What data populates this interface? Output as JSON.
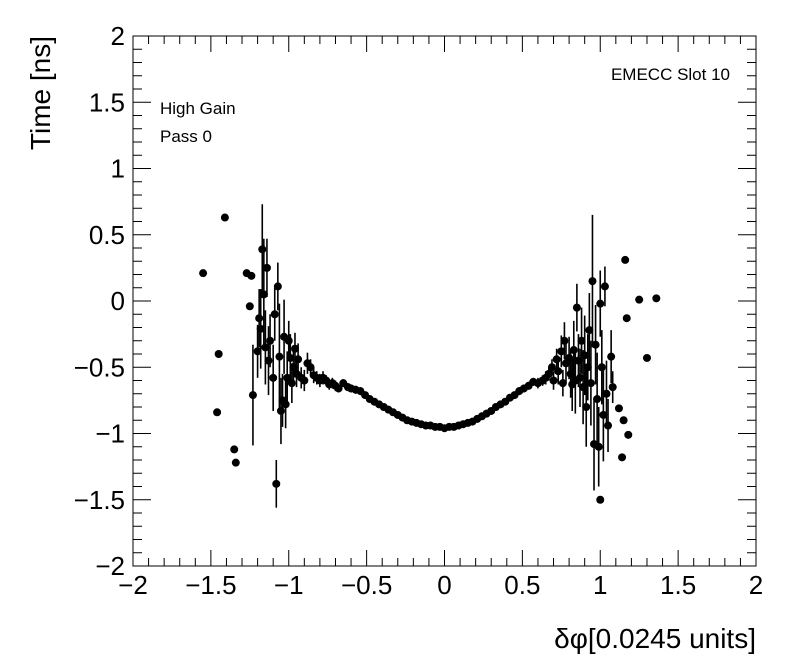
{
  "chart_data": {
    "type": "scatter",
    "title": "",
    "xlabel": "δφ[0.0245 units]",
    "ylabel": "Time [ns]",
    "xlim": [
      -2,
      2
    ],
    "ylim": [
      -2,
      2
    ],
    "x_ticks": [
      -2,
      -1.5,
      -1,
      -0.5,
      0,
      0.5,
      1,
      1.5,
      2
    ],
    "x_tick_labels": [
      "−2",
      "−1.5",
      "−1",
      "−0.5",
      "0",
      "0.5",
      "1",
      "1.5",
      "2"
    ],
    "y_ticks": [
      -2,
      -1.5,
      -1,
      -0.5,
      0,
      0.5,
      1,
      1.5,
      2
    ],
    "y_tick_labels": [
      "−2",
      "−1.5",
      "−1",
      "−0.5",
      "0",
      "0.5",
      "1",
      "1.5",
      "2"
    ],
    "grid": false,
    "legend": "none",
    "annotations": {
      "top_right": "EMECC Slot 10",
      "line1": "High Gain",
      "line2": "Pass 0"
    },
    "marker_color": "#000000",
    "series": [
      {
        "points": [
          [
            -1.55,
            0.21,
            0
          ],
          [
            -1.45,
            -0.4,
            0
          ],
          [
            -1.46,
            -0.84,
            0
          ],
          [
            -1.41,
            0.63,
            0
          ],
          [
            -1.35,
            -1.12,
            0
          ],
          [
            -1.34,
            -1.22,
            0
          ],
          [
            -1.27,
            0.21,
            0
          ],
          [
            -1.25,
            -0.04,
            0
          ],
          [
            -1.24,
            0.19,
            0
          ],
          [
            -1.23,
            -0.71,
            0.38
          ],
          [
            -1.2,
            -0.38,
            0.2
          ],
          [
            -1.19,
            -0.13,
            0.22
          ],
          [
            -1.18,
            -0.21,
            0.3
          ],
          [
            -1.17,
            0.39,
            0.34
          ],
          [
            -1.16,
            0.05,
            0.42
          ],
          [
            -1.15,
            -0.35,
            0.28
          ],
          [
            -1.14,
            0.25,
            0.22
          ],
          [
            -1.13,
            -0.45,
            0.26
          ],
          [
            -1.12,
            -0.3,
            0.2
          ],
          [
            -1.1,
            -0.58,
            0.25
          ],
          [
            -1.09,
            -0.1,
            0.2
          ],
          [
            -1.08,
            -1.38,
            0.18
          ],
          [
            -1.07,
            0.11,
            0.18
          ],
          [
            -1.06,
            -0.42,
            0.4
          ],
          [
            -1.05,
            -0.83,
            0.25
          ],
          [
            -1.04,
            -0.75,
            0.2
          ],
          [
            -1.03,
            -0.27,
            0.28
          ],
          [
            -1.02,
            -0.78,
            0.18
          ],
          [
            -1.01,
            -0.58,
            0.2
          ],
          [
            -1.0,
            -0.3,
            0.15
          ],
          [
            -0.99,
            -0.43,
            0.18
          ],
          [
            -0.98,
            -0.62,
            0.15
          ],
          [
            -0.97,
            -0.5,
            0.12
          ],
          [
            -0.96,
            -0.36,
            0.12
          ],
          [
            -0.95,
            -0.55,
            0.1
          ],
          [
            -0.94,
            -0.44,
            0.12
          ],
          [
            -0.92,
            -0.58,
            0.08
          ],
          [
            -0.9,
            -0.6,
            0.08
          ],
          [
            -0.88,
            -0.47,
            0.08
          ],
          [
            -0.86,
            -0.5,
            0.06
          ],
          [
            -0.84,
            -0.56,
            0.06
          ],
          [
            -0.82,
            -0.58,
            0.05
          ],
          [
            -0.8,
            -0.6,
            0.05
          ],
          [
            -0.78,
            -0.58,
            0.05
          ],
          [
            -0.76,
            -0.6,
            0.04
          ],
          [
            -0.74,
            -0.63,
            0.04
          ],
          [
            -0.72,
            -0.62,
            0.04
          ],
          [
            -0.7,
            -0.64,
            0.04
          ],
          [
            -0.68,
            -0.66,
            0.03
          ],
          [
            -0.65,
            -0.62,
            0.03
          ],
          [
            -0.62,
            -0.65,
            0.03
          ],
          [
            -0.6,
            -0.66,
            0.03
          ],
          [
            -0.57,
            -0.67,
            0.03
          ],
          [
            -0.54,
            -0.68,
            0.03
          ],
          [
            -0.51,
            -0.71,
            0.02
          ],
          [
            -0.48,
            -0.74,
            0.02
          ],
          [
            -0.45,
            -0.76,
            0.02
          ],
          [
            -0.42,
            -0.78,
            0.02
          ],
          [
            -0.39,
            -0.8,
            0.02
          ],
          [
            -0.36,
            -0.82,
            0.02
          ],
          [
            -0.33,
            -0.84,
            0.02
          ],
          [
            -0.3,
            -0.86,
            0.02
          ],
          [
            -0.27,
            -0.88,
            0.02
          ],
          [
            -0.24,
            -0.9,
            0.02
          ],
          [
            -0.21,
            -0.91,
            0.02
          ],
          [
            -0.18,
            -0.92,
            0.02
          ],
          [
            -0.15,
            -0.93,
            0.02
          ],
          [
            -0.12,
            -0.94,
            0.02
          ],
          [
            -0.09,
            -0.94,
            0.02
          ],
          [
            -0.06,
            -0.95,
            0.02
          ],
          [
            -0.03,
            -0.95,
            0.02
          ],
          [
            0.0,
            -0.96,
            0.02
          ],
          [
            0.03,
            -0.95,
            0.02
          ],
          [
            0.06,
            -0.95,
            0.02
          ],
          [
            0.09,
            -0.94,
            0.02
          ],
          [
            0.12,
            -0.93,
            0.02
          ],
          [
            0.15,
            -0.92,
            0.02
          ],
          [
            0.18,
            -0.91,
            0.02
          ],
          [
            0.21,
            -0.89,
            0.02
          ],
          [
            0.24,
            -0.87,
            0.02
          ],
          [
            0.27,
            -0.85,
            0.02
          ],
          [
            0.3,
            -0.83,
            0.02
          ],
          [
            0.33,
            -0.8,
            0.02
          ],
          [
            0.36,
            -0.78,
            0.02
          ],
          [
            0.39,
            -0.76,
            0.02
          ],
          [
            0.42,
            -0.73,
            0.02
          ],
          [
            0.45,
            -0.71,
            0.02
          ],
          [
            0.48,
            -0.68,
            0.03
          ],
          [
            0.51,
            -0.66,
            0.03
          ],
          [
            0.54,
            -0.64,
            0.03
          ],
          [
            0.57,
            -0.61,
            0.03
          ],
          [
            0.6,
            -0.62,
            0.04
          ],
          [
            0.63,
            -0.6,
            0.04
          ],
          [
            0.65,
            -0.58,
            0.05
          ],
          [
            0.67,
            -0.55,
            0.05
          ],
          [
            0.69,
            -0.5,
            0.06
          ],
          [
            0.7,
            -0.6,
            0.07
          ],
          [
            0.72,
            -0.44,
            0.08
          ],
          [
            0.73,
            -0.53,
            0.1
          ],
          [
            0.75,
            -0.38,
            0.12
          ],
          [
            0.76,
            -0.62,
            0.1
          ],
          [
            0.77,
            -0.3,
            0.14
          ],
          [
            0.78,
            -0.47,
            0.15
          ],
          [
            0.8,
            -0.43,
            0.16
          ],
          [
            0.81,
            -0.55,
            0.18
          ],
          [
            0.82,
            -0.63,
            0.2
          ],
          [
            0.83,
            -0.37,
            0.22
          ],
          [
            0.84,
            -0.6,
            0.25
          ],
          [
            0.85,
            -0.05,
            0.18
          ],
          [
            0.86,
            -0.45,
            0.2
          ],
          [
            0.87,
            -0.58,
            0.22
          ],
          [
            0.88,
            -0.3,
            0.25
          ],
          [
            0.89,
            -0.65,
            0.28
          ],
          [
            0.9,
            -0.41,
            0.3
          ],
          [
            0.91,
            -0.8,
            0.3
          ],
          [
            0.92,
            -0.5,
            0.25
          ],
          [
            0.93,
            -0.22,
            0.28
          ],
          [
            0.94,
            -0.62,
            0.32
          ],
          [
            0.95,
            0.15,
            0.5
          ],
          [
            0.96,
            -1.08,
            0.35
          ],
          [
            0.97,
            -0.33,
            0.3
          ],
          [
            0.98,
            -0.74,
            0.35
          ],
          [
            0.99,
            -1.1,
            0.3
          ],
          [
            1.0,
            -1.5,
            0
          ],
          [
            1.0,
            -0.02,
            0.25
          ],
          [
            1.01,
            -0.5,
            0.28
          ],
          [
            1.02,
            -0.86,
            0.35
          ],
          [
            1.03,
            0.11,
            0.15
          ],
          [
            1.04,
            -0.7,
            0.25
          ],
          [
            1.05,
            -0.94,
            0.2
          ],
          [
            1.07,
            -0.42,
            0.2
          ],
          [
            1.08,
            -0.65,
            0.12
          ],
          [
            1.12,
            -0.81,
            0
          ],
          [
            1.14,
            -1.18,
            0
          ],
          [
            1.15,
            -0.9,
            0
          ],
          [
            1.16,
            0.31,
            0
          ],
          [
            1.17,
            -0.13,
            0
          ],
          [
            1.18,
            -1.01,
            0
          ],
          [
            1.25,
            0.01,
            0
          ],
          [
            1.3,
            -0.43,
            0
          ],
          [
            1.36,
            0.02,
            0
          ]
        ]
      }
    ]
  }
}
